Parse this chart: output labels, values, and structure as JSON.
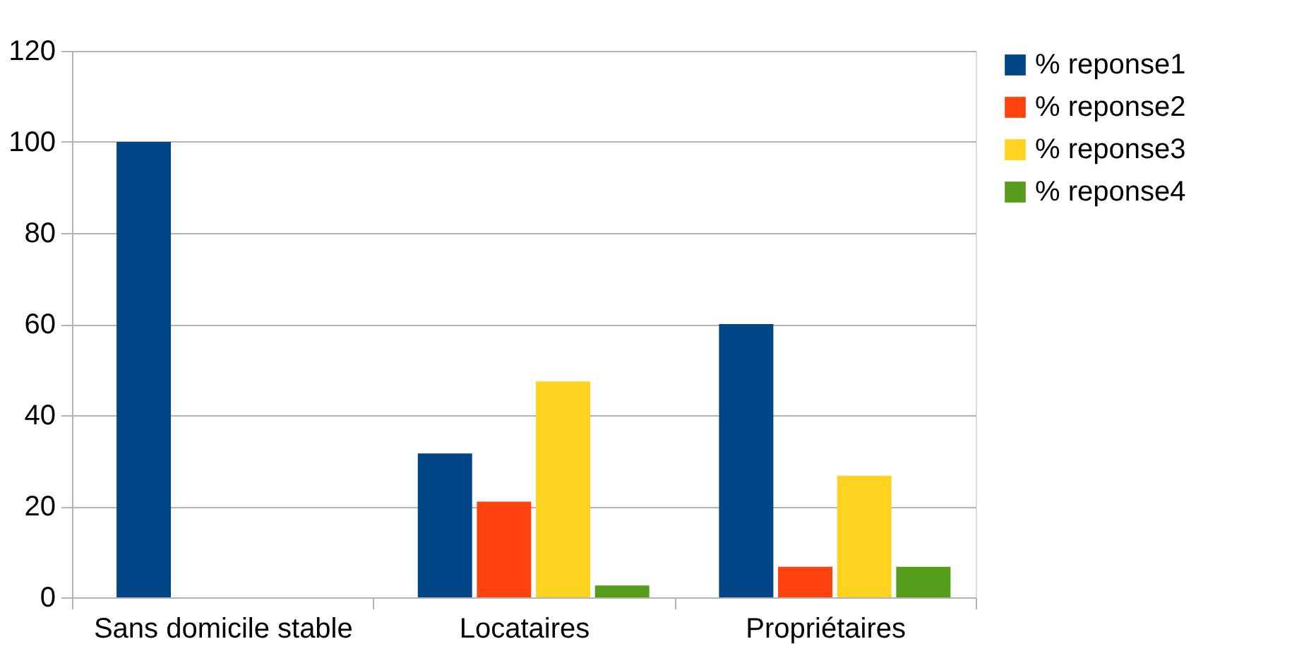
{
  "chart_data": {
    "type": "bar",
    "categories": [
      "Sans domicile stable",
      "Locataires",
      "Propriétaires"
    ],
    "series": [
      {
        "name": "% reponse1",
        "color": "#004586",
        "values": [
          100,
          31.6,
          60
        ]
      },
      {
        "name": "% reponse2",
        "color": "#ff420e",
        "values": [
          0,
          21,
          6.7
        ]
      },
      {
        "name": "% reponse3",
        "color": "#ffd320",
        "values": [
          0,
          47.4,
          26.7
        ]
      },
      {
        "name": "% reponse4",
        "color": "#579d1c",
        "values": [
          0,
          2.6,
          6.7
        ]
      }
    ],
    "ylim": [
      0,
      120
    ],
    "yticks": [
      0,
      20,
      40,
      60,
      80,
      100,
      120
    ],
    "grid": "y",
    "legend": "right"
  }
}
